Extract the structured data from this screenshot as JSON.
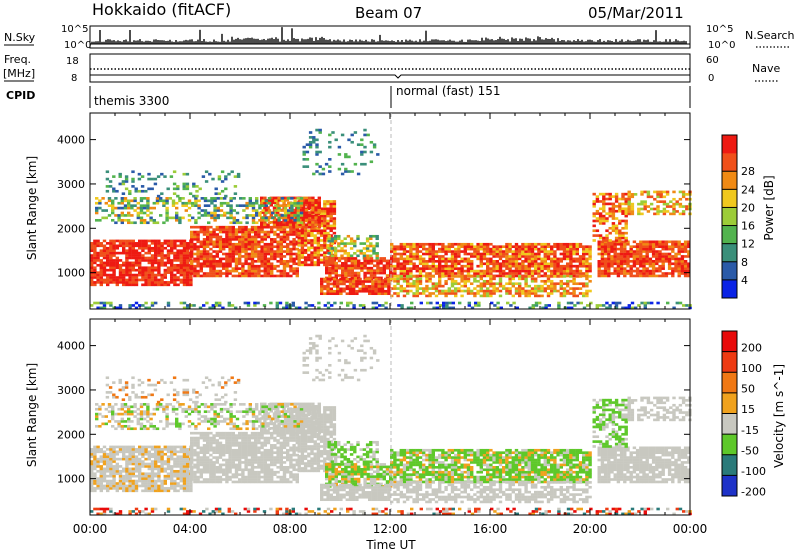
{
  "header": {
    "station": "Hokkaido (fitACF)",
    "beam": "Beam 07",
    "date": "05/Mar/2011"
  },
  "info_panels": {
    "nsky_label": "N.Sky",
    "nsky_ticks": [
      "10^5",
      "10^0"
    ],
    "nsearch_label": "N.Search",
    "nsearch_ticks": [
      "10^5",
      "10^0"
    ],
    "freq_label_top": "Freq.",
    "freq_label_units": "[MHz]",
    "freq_ticks": [
      "18",
      "8"
    ],
    "nave_label": "Nave",
    "nave_ticks": [
      "60",
      "0"
    ],
    "cpid_label": "CPID",
    "cpid_segments": [
      {
        "name": "themis 3300",
        "start_hour": 0,
        "end_hour": 12
      },
      {
        "name": "normal (fast) 151",
        "start_hour": 12,
        "end_hour": 24
      }
    ]
  },
  "chart_data": [
    {
      "type": "heatmap",
      "title": "",
      "xlabel": "Time UT",
      "ylabel": "Slant Range [km]",
      "x_range_hours": [
        0,
        24
      ],
      "x_ticks": [
        "00:00",
        "04:00",
        "08:00",
        "12:00",
        "16:00",
        "20:00",
        "00:00"
      ],
      "ylim": [
        180,
        4600
      ],
      "y_ticks": [
        1000,
        2000,
        3000,
        4000
      ],
      "colorbar": {
        "label": "Power [dB]",
        "min": 0,
        "max": 32,
        "ticks": [
          "4",
          "8",
          "12",
          "16",
          "20",
          "24",
          "28"
        ],
        "colors": [
          "#0a23e6",
          "#2a5aa8",
          "#3a8f7a",
          "#52b34e",
          "#9ccc38",
          "#f0c81e",
          "#f08a14",
          "#f0501a",
          "#ee1a12"
        ]
      }
    },
    {
      "type": "heatmap",
      "title": "",
      "xlabel": "Time UT",
      "ylabel": "Slant Range [km]",
      "x_range_hours": [
        0,
        24
      ],
      "x_ticks": [
        "00:00",
        "04:00",
        "08:00",
        "12:00",
        "16:00",
        "20:00",
        "00:00"
      ],
      "ylim": [
        180,
        4600
      ],
      "y_ticks": [
        1000,
        2000,
        3000,
        4000
      ],
      "colorbar": {
        "label": "Velocity [m s^-1]",
        "ticks": [
          "200",
          "100",
          "50",
          "15",
          "-15",
          "-50",
          "-100",
          "-200"
        ],
        "colors": [
          "#1e32c8",
          "#2a7a7a",
          "#5ec82a",
          "#c8c8c0",
          "#f0a21e",
          "#f07814",
          "#ee3a12",
          "#e80a0a"
        ]
      }
    }
  ]
}
